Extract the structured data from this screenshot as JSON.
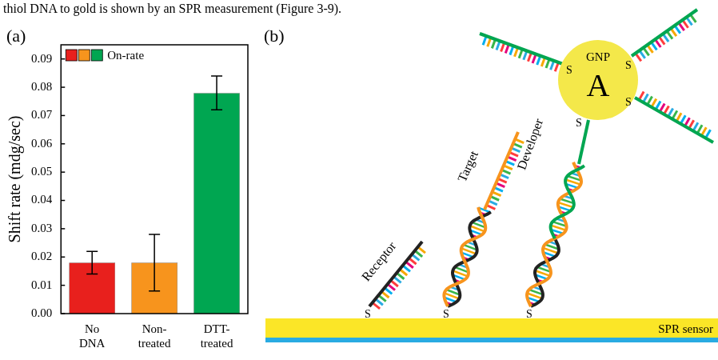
{
  "header_text": "thiol DNA to gold is shown by an SPR measurement (Figure 3-9).",
  "panels": {
    "a": "(a)",
    "b": "(b)"
  },
  "chart_data": {
    "type": "bar",
    "y_label": "Shift rate (mdg/sec)",
    "categories": [
      "No DNA",
      "Non-treated",
      "DTT-treated"
    ],
    "series": [
      {
        "name": "On-rate",
        "values": [
          0.018,
          0.018,
          0.078
        ],
        "errors": [
          0.004,
          0.01,
          0.006
        ],
        "colors": [
          "#e8201d",
          "#f7941d",
          "#00a651"
        ]
      }
    ],
    "ylim": [
      0,
      0.095
    ],
    "yticks": [
      {
        "value": 0,
        "label": "0.00"
      },
      0.01,
      0.02,
      0.03,
      0.04,
      0.05,
      0.06,
      0.07,
      0.08,
      0.09
    ],
    "grid": false,
    "legend": "upper left"
  },
  "diagram": {
    "receptor": "Receptor",
    "target": "Target",
    "developer": "Developer",
    "particle_name": "GNP",
    "particle_letter": "A",
    "sensor": "SPR sensor",
    "thiol": "S"
  }
}
